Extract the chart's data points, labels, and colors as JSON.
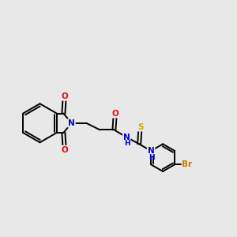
{
  "background_color": "#e8e8e8",
  "bond_color": "#000000",
  "atom_colors": {
    "N": "#0000cc",
    "O": "#ff0000",
    "S": "#ccaa00",
    "Br": "#cc7700",
    "C": "#000000"
  },
  "figsize": [
    3.0,
    3.0
  ],
  "dpi": 100
}
